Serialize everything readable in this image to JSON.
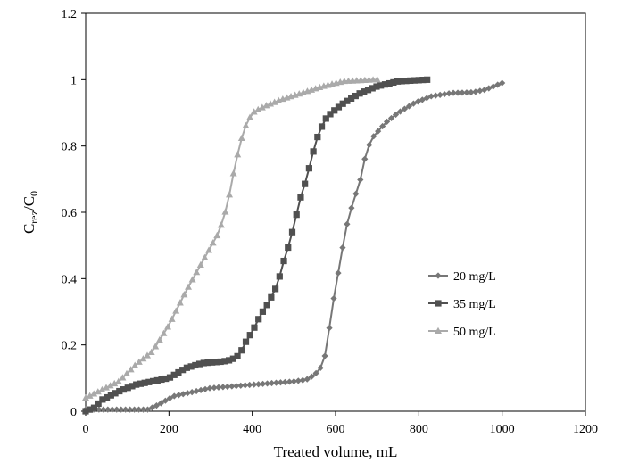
{
  "chart_data": {
    "type": "line",
    "xlabel": "Treated volume, mL",
    "ylabel": {
      "main": "C",
      "sub1": "rez",
      "sep": "/C",
      "sub2": "0"
    },
    "xlim": [
      0,
      1200
    ],
    "ylim": [
      0,
      1.2
    ],
    "x_ticks": [
      "0",
      "200",
      "400",
      "600",
      "800",
      "1000",
      "1200"
    ],
    "y_ticks": [
      "0",
      "0.2",
      "0.4",
      "0.6",
      "0.8",
      "1",
      "1.2"
    ],
    "grid": false,
    "legend_position": "right",
    "series": [
      {
        "name": "20 mg/L",
        "marker": "diamond",
        "color": "#777777",
        "anchors": [
          [
            0,
            0.005
          ],
          [
            150,
            0.005
          ],
          [
            175,
            0.02
          ],
          [
            210,
            0.045
          ],
          [
            300,
            0.07
          ],
          [
            400,
            0.08
          ],
          [
            500,
            0.09
          ],
          [
            530,
            0.095
          ],
          [
            550,
            0.11
          ],
          [
            570,
            0.14
          ],
          [
            580,
            0.2
          ],
          [
            590,
            0.3
          ],
          [
            600,
            0.37
          ],
          [
            615,
            0.48
          ],
          [
            630,
            0.58
          ],
          [
            645,
            0.64
          ],
          [
            660,
            0.7
          ],
          [
            670,
            0.76
          ],
          [
            685,
            0.82
          ],
          [
            720,
            0.87
          ],
          [
            750,
            0.9
          ],
          [
            790,
            0.93
          ],
          [
            830,
            0.95
          ],
          [
            880,
            0.96
          ],
          [
            930,
            0.962
          ],
          [
            960,
            0.97
          ],
          [
            1000,
            0.99
          ]
        ],
        "n": 95
      },
      {
        "name": "35 mg/L",
        "marker": "square",
        "color": "#505050",
        "anchors": [
          [
            0,
            0.0
          ],
          [
            20,
            0.01
          ],
          [
            40,
            0.035
          ],
          [
            80,
            0.06
          ],
          [
            120,
            0.08
          ],
          [
            160,
            0.09
          ],
          [
            200,
            0.1
          ],
          [
            240,
            0.13
          ],
          [
            280,
            0.145
          ],
          [
            330,
            0.15
          ],
          [
            350,
            0.155
          ],
          [
            370,
            0.17
          ],
          [
            380,
            0.2
          ],
          [
            400,
            0.24
          ],
          [
            420,
            0.29
          ],
          [
            440,
            0.33
          ],
          [
            460,
            0.38
          ],
          [
            475,
            0.45
          ],
          [
            490,
            0.51
          ],
          [
            500,
            0.56
          ],
          [
            515,
            0.64
          ],
          [
            530,
            0.7
          ],
          [
            540,
            0.75
          ],
          [
            550,
            0.8
          ],
          [
            560,
            0.84
          ],
          [
            575,
            0.88
          ],
          [
            590,
            0.9
          ],
          [
            620,
            0.93
          ],
          [
            660,
            0.96
          ],
          [
            700,
            0.98
          ],
          [
            750,
            0.995
          ],
          [
            820,
            1.0
          ]
        ],
        "n": 82
      },
      {
        "name": "50 mg/L",
        "marker": "triangle",
        "color": "#aaaaaa",
        "anchors": [
          [
            0,
            0.04
          ],
          [
            40,
            0.065
          ],
          [
            80,
            0.09
          ],
          [
            120,
            0.14
          ],
          [
            160,
            0.18
          ],
          [
            200,
            0.26
          ],
          [
            240,
            0.36
          ],
          [
            280,
            0.45
          ],
          [
            320,
            0.54
          ],
          [
            340,
            0.62
          ],
          [
            360,
            0.75
          ],
          [
            380,
            0.85
          ],
          [
            400,
            0.9
          ],
          [
            430,
            0.92
          ],
          [
            470,
            0.94
          ],
          [
            520,
            0.96
          ],
          [
            570,
            0.98
          ],
          [
            620,
            0.995
          ],
          [
            700,
            1.0
          ]
        ],
        "n": 72
      }
    ]
  }
}
